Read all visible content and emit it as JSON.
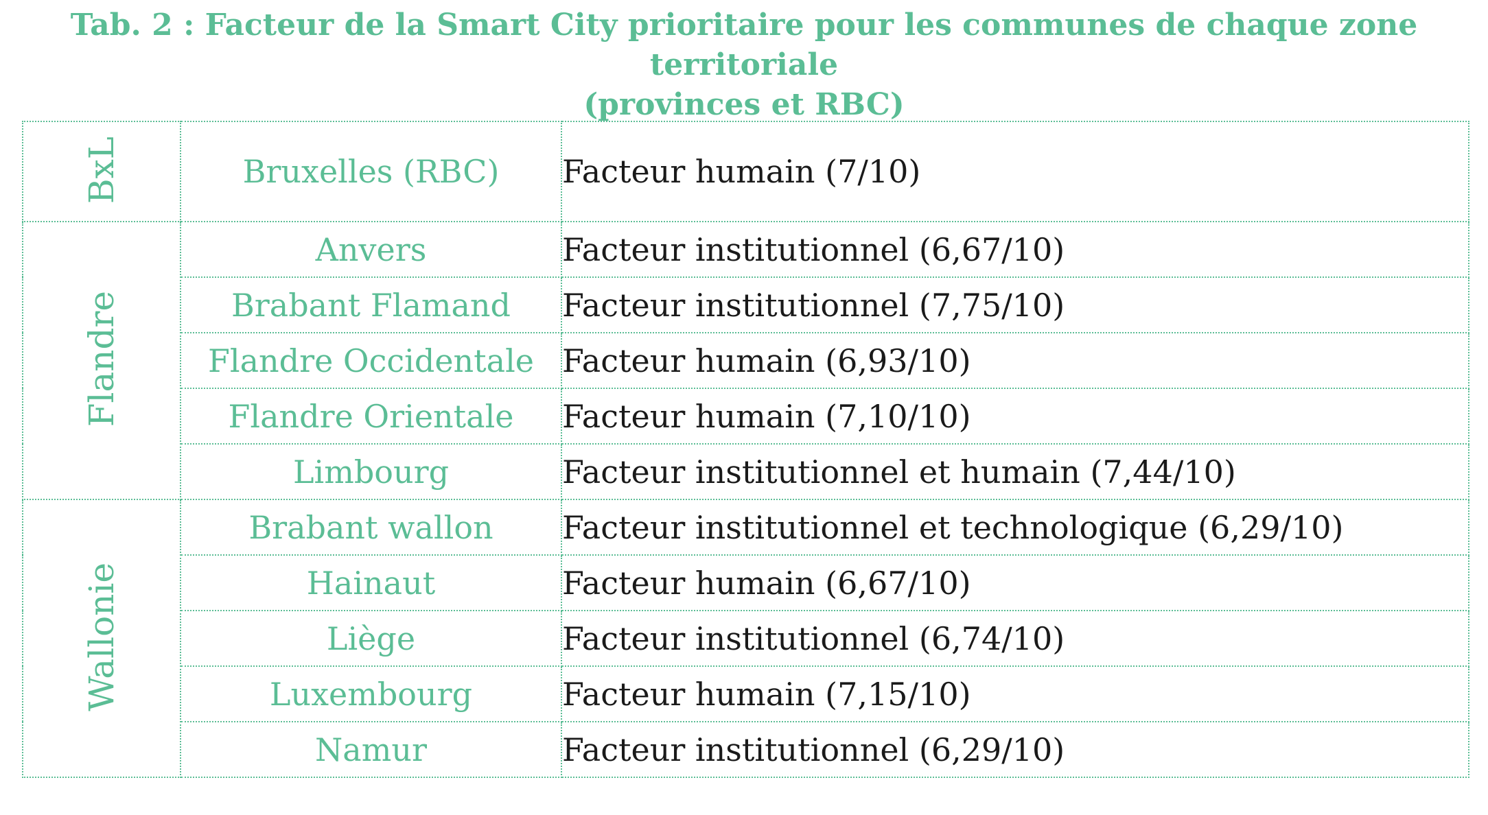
{
  "title": {
    "line1": "Tab. 2 : Facteur de la Smart City prioritaire pour les communes de chaque zone territoriale",
    "line2": "(provinces et RBC)"
  },
  "table": {
    "zones": [
      "BxL",
      "Flandre",
      "Wallonie"
    ],
    "rows": [
      {
        "zone": "BxL",
        "province": "Bruxelles (RBC)",
        "factor": "Facteur humain (7/10)"
      },
      {
        "zone": "Flandre",
        "province": "Anvers",
        "factor": "Facteur institutionnel (6,67/10)"
      },
      {
        "zone": "Flandre",
        "province": "Brabant Flamand",
        "factor": "Facteur institutionnel (7,75/10)"
      },
      {
        "zone": "Flandre",
        "province": "Flandre Occidentale",
        "factor": "Facteur humain (6,93/10)"
      },
      {
        "zone": "Flandre",
        "province": "Flandre Orientale",
        "factor": "Facteur humain (7,10/10)"
      },
      {
        "zone": "Flandre",
        "province": "Limbourg",
        "factor": "Facteur institutionnel et humain (7,44/10)"
      },
      {
        "zone": "Wallonie",
        "province": "Brabant wallon",
        "factor": "Facteur institutionnel et technologique (6,29/10)"
      },
      {
        "zone": "Wallonie",
        "province": "Hainaut",
        "factor": "Facteur humain (6,67/10)"
      },
      {
        "zone": "Wallonie",
        "province": "Liège",
        "factor": "Facteur institutionnel (6,74/10)"
      },
      {
        "zone": "Wallonie",
        "province": "Luxembourg",
        "factor": "Facteur humain (7,15/10)"
      },
      {
        "zone": "Wallonie",
        "province": "Namur",
        "factor": "Facteur institutionnel (6,29/10)"
      }
    ]
  },
  "colors": {
    "accent_green": "#5bbd95",
    "body_text": "#1a1a1a",
    "row_divider": "#7a7a7a"
  }
}
